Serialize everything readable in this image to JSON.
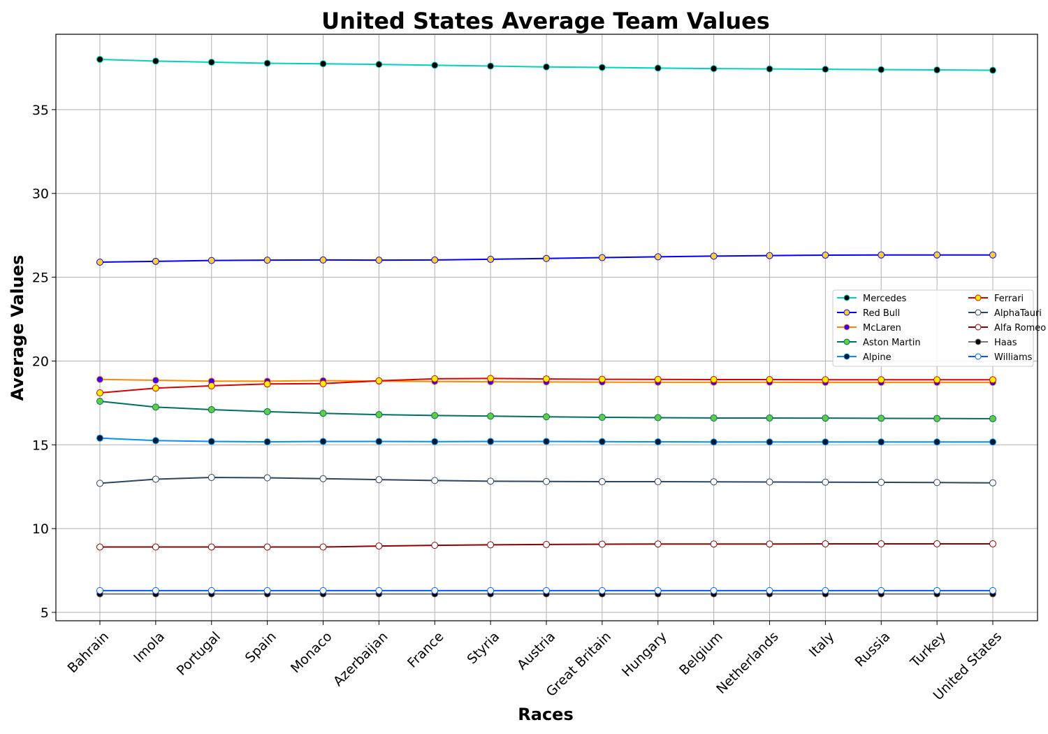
{
  "chart_data": {
    "type": "line",
    "title": "United States Average Team Values",
    "xlabel": "Races",
    "ylabel": "Average Values",
    "categories": [
      "Bahrain",
      "Imola",
      "Portugal",
      "Spain",
      "Monaco",
      "Azerbaijan",
      "France",
      "Styria",
      "Austria",
      "Great Britain",
      "Hungary",
      "Belgium",
      "Netherlands",
      "Italy",
      "Russia",
      "Turkey",
      "United States"
    ],
    "ylim": [
      4.5,
      39.5
    ],
    "yticks": [
      "5",
      "10",
      "15",
      "20",
      "25",
      "30",
      "35"
    ],
    "grid": true,
    "legend_position": "center-right",
    "series": [
      {
        "name": "Mercedes",
        "color": "#00d2be",
        "marker_fill": "#000000",
        "marker_edge": "#00d2be",
        "values": [
          38.0,
          37.9,
          37.83,
          37.77,
          37.74,
          37.7,
          37.65,
          37.6,
          37.55,
          37.52,
          37.48,
          37.45,
          37.43,
          37.41,
          37.39,
          37.37,
          37.35
        ]
      },
      {
        "name": "Red Bull",
        "color": "#0000ff",
        "marker_fill": "#ffcc33",
        "marker_edge": "#0000ff",
        "values": [
          25.9,
          25.95,
          26.0,
          26.02,
          26.03,
          26.02,
          26.03,
          26.07,
          26.12,
          26.17,
          26.22,
          26.26,
          26.29,
          26.32,
          26.33,
          26.33,
          26.33
        ]
      },
      {
        "name": "McLaren",
        "color": "#ff8700",
        "marker_fill": "#3300ff",
        "marker_edge": "#ff8700",
        "values": [
          18.9,
          18.85,
          18.8,
          18.8,
          18.83,
          18.8,
          18.78,
          18.76,
          18.75,
          18.74,
          18.73,
          18.73,
          18.73,
          18.72,
          18.72,
          18.72,
          18.72
        ]
      },
      {
        "name": "Aston Martin",
        "color": "#006f62",
        "marker_fill": "#5fcf3f",
        "marker_edge": "#006f62",
        "values": [
          17.6,
          17.25,
          17.1,
          16.98,
          16.88,
          16.8,
          16.75,
          16.71,
          16.67,
          16.64,
          16.62,
          16.6,
          16.6,
          16.59,
          16.58,
          16.57,
          16.56
        ]
      },
      {
        "name": "Alpine",
        "color": "#0090ff",
        "marker_fill": "#001a33",
        "marker_edge": "#0090ff",
        "values": [
          15.4,
          15.25,
          15.2,
          15.18,
          15.2,
          15.2,
          15.19,
          15.2,
          15.2,
          15.19,
          15.18,
          15.17,
          15.17,
          15.17,
          15.17,
          15.17,
          15.17
        ]
      },
      {
        "name": "Ferrari",
        "color": "#dc0000",
        "marker_fill": "#fff200",
        "marker_edge": "#dc0000",
        "values": [
          18.1,
          18.38,
          18.52,
          18.63,
          18.65,
          18.82,
          18.94,
          18.96,
          18.93,
          18.91,
          18.9,
          18.89,
          18.89,
          18.88,
          18.88,
          18.88,
          18.88
        ]
      },
      {
        "name": "AlphaTauri",
        "color": "#2b4562",
        "marker_fill": "#ffffff",
        "marker_edge": "#2b4562",
        "values": [
          12.7,
          12.95,
          13.05,
          13.03,
          12.98,
          12.92,
          12.87,
          12.83,
          12.81,
          12.8,
          12.8,
          12.79,
          12.78,
          12.77,
          12.76,
          12.75,
          12.73
        ]
      },
      {
        "name": "Alfa Romeo",
        "color": "#900000",
        "marker_fill": "#ffffff",
        "marker_edge": "#900000",
        "values": [
          8.9,
          8.9,
          8.9,
          8.9,
          8.9,
          8.96,
          9.0,
          9.03,
          9.05,
          9.07,
          9.08,
          9.08,
          9.08,
          9.09,
          9.09,
          9.09,
          9.09
        ]
      },
      {
        "name": "Haas",
        "color": "#787878",
        "marker_fill": "#000000",
        "marker_edge": "#787878",
        "values": [
          6.1,
          6.1,
          6.1,
          6.1,
          6.1,
          6.1,
          6.1,
          6.1,
          6.1,
          6.1,
          6.1,
          6.1,
          6.1,
          6.1,
          6.1,
          6.1,
          6.1
        ]
      },
      {
        "name": "Williams",
        "color": "#005aff",
        "marker_fill": "#ffffff",
        "marker_edge": "#005aff",
        "values": [
          6.3,
          6.3,
          6.3,
          6.3,
          6.3,
          6.3,
          6.3,
          6.3,
          6.3,
          6.3,
          6.3,
          6.3,
          6.3,
          6.3,
          6.3,
          6.3,
          6.3
        ]
      }
    ]
  }
}
